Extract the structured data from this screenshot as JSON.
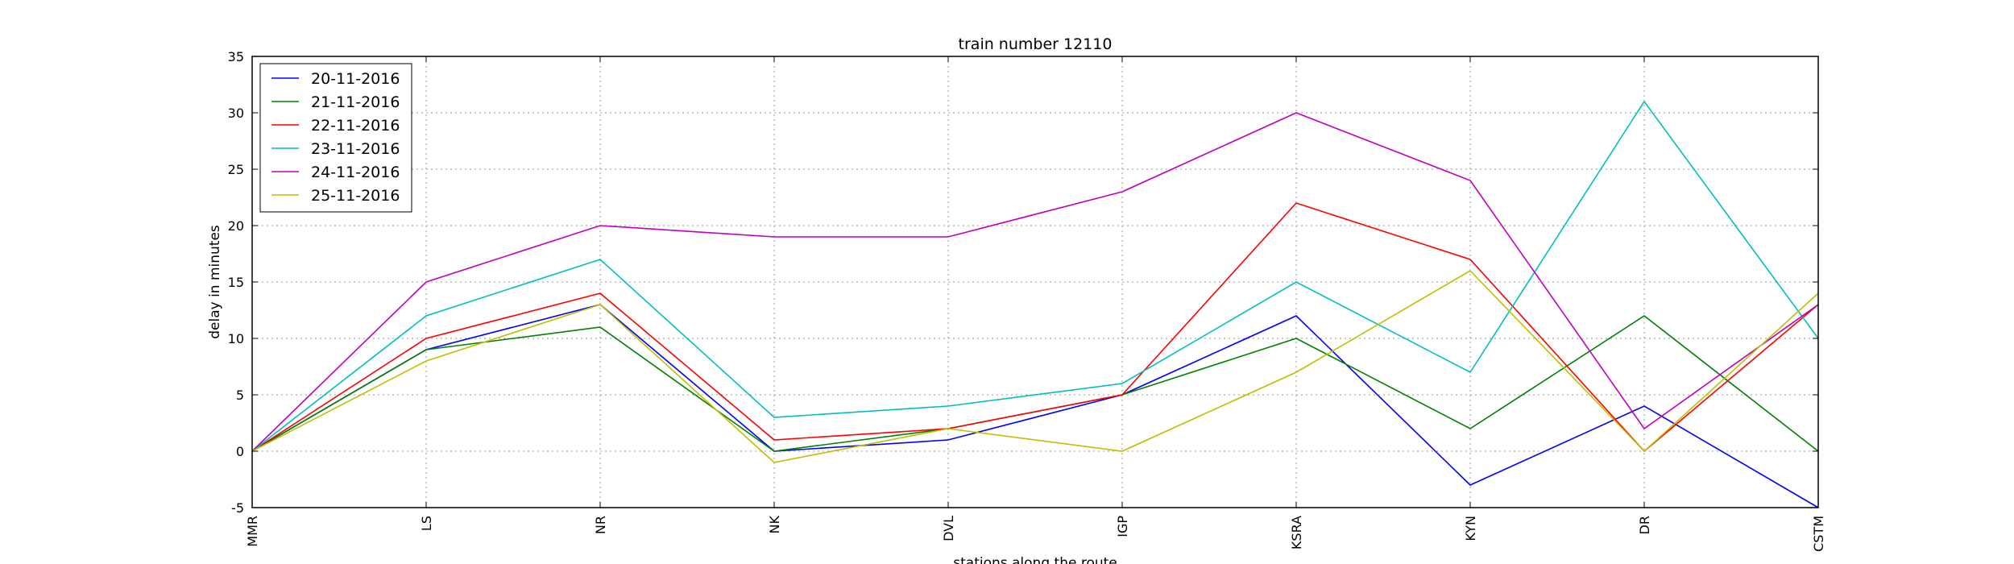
{
  "chart_data": {
    "type": "line",
    "title": "train number 12110",
    "xlabel": "stations along the route",
    "ylabel": "delay in minutes",
    "categories": [
      "MMR",
      "LS",
      "NR",
      "NK",
      "DVL",
      "IGP",
      "KSRA",
      "KYN",
      "DR",
      "CSTM"
    ],
    "ylim": [
      -5,
      35
    ],
    "yticks": [
      -5,
      0,
      5,
      10,
      15,
      20,
      25,
      30,
      35
    ],
    "grid": true,
    "legend_position": "top-left",
    "series": [
      {
        "name": "20-11-2016",
        "color": "#0000ff",
        "values": [
          0,
          9,
          13,
          0,
          1,
          5,
          12,
          -3,
          4,
          -5
        ]
      },
      {
        "name": "21-11-2016",
        "color": "#008000",
        "values": [
          0,
          9,
          11,
          0,
          2,
          5,
          10,
          2,
          12,
          0
        ]
      },
      {
        "name": "22-11-2016",
        "color": "#ff0000",
        "values": [
          0,
          10,
          14,
          1,
          2,
          5,
          22,
          17,
          0,
          13
        ]
      },
      {
        "name": "23-11-2016",
        "color": "#00bfbf",
        "values": [
          0,
          12,
          17,
          3,
          4,
          6,
          15,
          7,
          31,
          10
        ]
      },
      {
        "name": "24-11-2016",
        "color": "#bf00bf",
        "values": [
          0,
          15,
          20,
          19,
          19,
          23,
          30,
          24,
          2,
          13
        ]
      },
      {
        "name": "25-11-2016",
        "color": "#bfbf00",
        "values": [
          0,
          8,
          13,
          -1,
          2,
          0,
          7,
          16,
          0,
          14
        ]
      }
    ]
  }
}
